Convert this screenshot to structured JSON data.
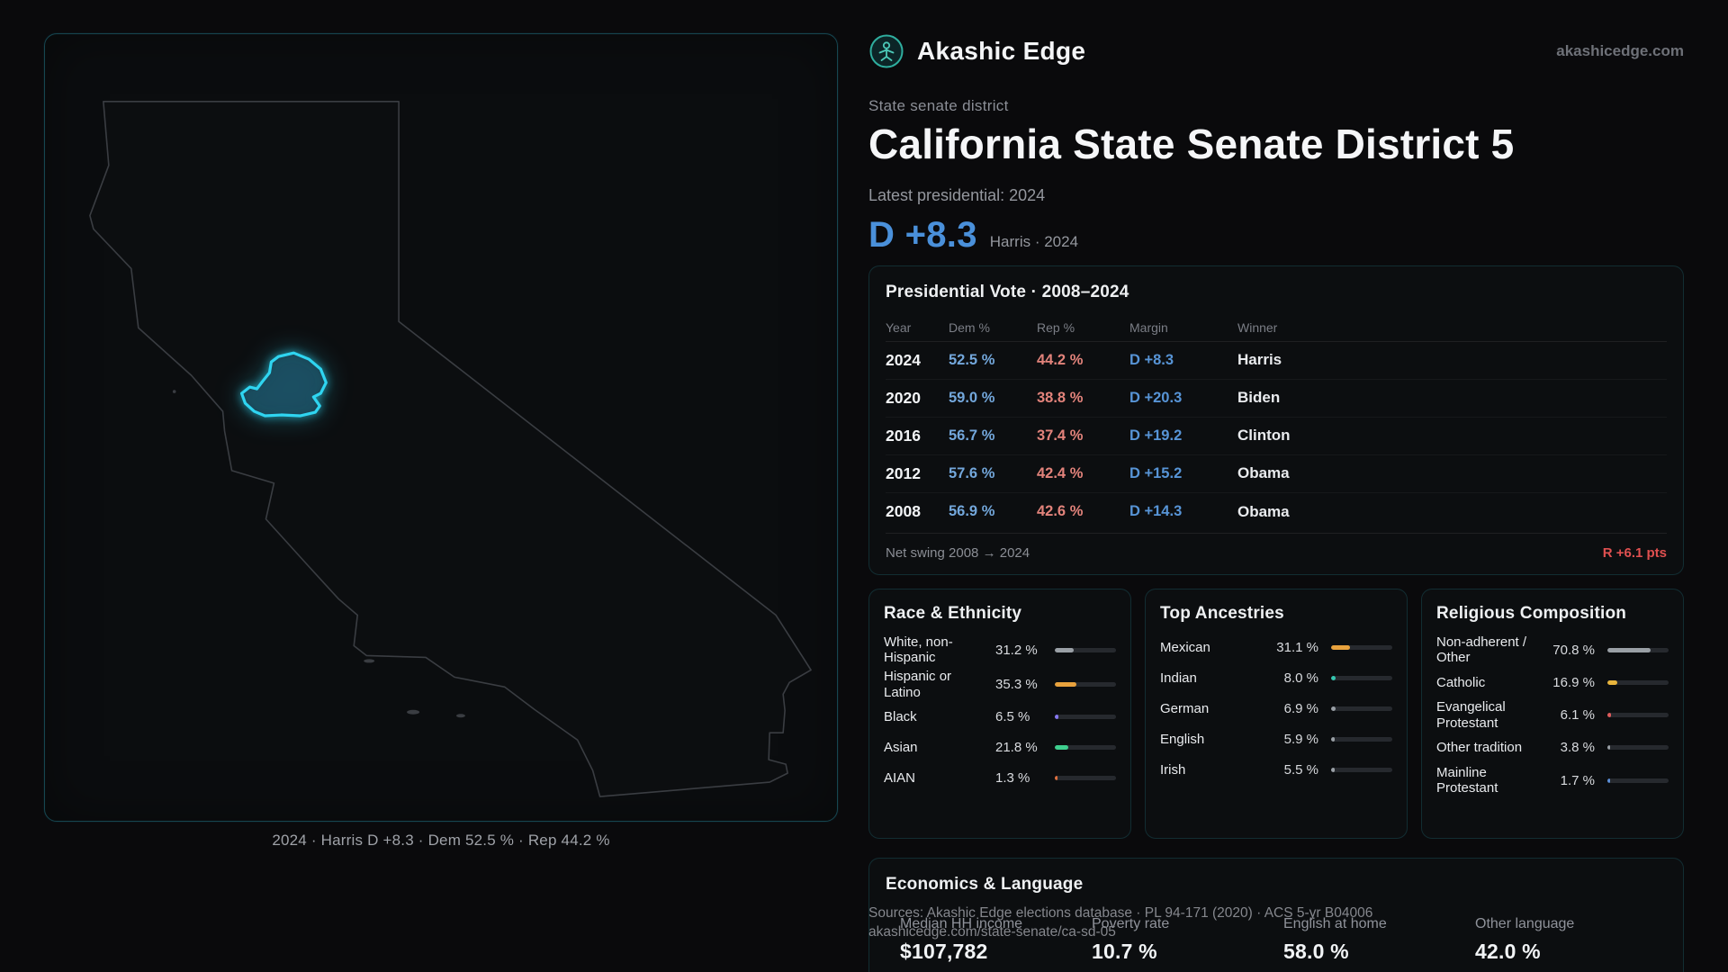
{
  "brand": {
    "name": "Akashic Edge",
    "domain": "akashicedge.com"
  },
  "hero": {
    "eyebrow": "State senate district",
    "title": "California State Senate District 5",
    "latest_label": "Latest presidential: 2024",
    "headline_margin": "D +8.3",
    "headline_note": "Harris · 2024"
  },
  "map": {
    "caption": "2024 · Harris D +8.3 · Dem 52.5 % · Rep 44.2 %",
    "district_color": "#2fd5f1",
    "state_outline_color": "#3a3d42"
  },
  "presidential": {
    "title": "Presidential Vote · 2008–2024",
    "columns": [
      "Year",
      "Dem %",
      "Rep %",
      "Margin",
      "Winner"
    ],
    "rows": [
      {
        "year": "2024",
        "dem": "52.5 %",
        "rep": "44.2 %",
        "margin": "D +8.3",
        "winner": "Harris"
      },
      {
        "year": "2020",
        "dem": "59.0 %",
        "rep": "38.8 %",
        "margin": "D +20.3",
        "winner": "Biden"
      },
      {
        "year": "2016",
        "dem": "56.7 %",
        "rep": "37.4 %",
        "margin": "D +19.2",
        "winner": "Clinton"
      },
      {
        "year": "2012",
        "dem": "57.6 %",
        "rep": "42.4 %",
        "margin": "D +15.2",
        "winner": "Obama"
      },
      {
        "year": "2008",
        "dem": "56.9 %",
        "rep": "42.6 %",
        "margin": "D +14.3",
        "winner": "Obama"
      }
    ],
    "net_swing_label": "Net swing 2008 → 2024",
    "net_swing_value": "R +6.1 pts"
  },
  "race": {
    "title": "Race & Ethnicity",
    "rows": [
      {
        "label": "White, non-Hispanic",
        "value": "31.2 %",
        "pct": 31.2,
        "color": "#9aa0a6"
      },
      {
        "label": "Hispanic or Latino",
        "value": "35.3 %",
        "pct": 35.3,
        "color": "#e8a23d"
      },
      {
        "label": "Black",
        "value": "6.5 %",
        "pct": 6.5,
        "color": "#8678f0"
      },
      {
        "label": "Asian",
        "value": "21.8 %",
        "pct": 21.8,
        "color": "#3ecf8e"
      },
      {
        "label": "AIAN",
        "value": "1.3 %",
        "pct": 1.3,
        "color": "#e0703f"
      }
    ]
  },
  "ancestries": {
    "title": "Top Ancestries",
    "rows": [
      {
        "label": "Mexican",
        "value": "31.1 %",
        "pct": 31.1,
        "color": "#e8a23d"
      },
      {
        "label": "Indian",
        "value": "8.0 %",
        "pct": 8.0,
        "color": "#35c7b0"
      },
      {
        "label": "German",
        "value": "6.9 %",
        "pct": 6.9,
        "color": "#9aa0a6"
      },
      {
        "label": "English",
        "value": "5.9 %",
        "pct": 5.9,
        "color": "#9aa0a6"
      },
      {
        "label": "Irish",
        "value": "5.5 %",
        "pct": 5.5,
        "color": "#9aa0a6"
      }
    ]
  },
  "religion": {
    "title": "Religious Composition",
    "rows": [
      {
        "label": "Non-adherent / Other",
        "value": "70.8 %",
        "pct": 70.8,
        "color": "#9aa0a6"
      },
      {
        "label": "Catholic",
        "value": "16.9 %",
        "pct": 16.9,
        "color": "#e8b53d"
      },
      {
        "label": "Evangelical Protestant",
        "value": "6.1 %",
        "pct": 6.1,
        "color": "#e05b5b"
      },
      {
        "label": "Other tradition",
        "value": "3.8 %",
        "pct": 3.8,
        "color": "#9aa0a6"
      },
      {
        "label": "Mainline Protestant",
        "value": "1.7 %",
        "pct": 1.7,
        "color": "#5b8fd9"
      }
    ]
  },
  "economics": {
    "title": "Economics & Language",
    "stats": [
      {
        "label": "Median HH income",
        "value": "$107,782"
      },
      {
        "label": "Poverty rate",
        "value": "10.7 %"
      },
      {
        "label": "English at home",
        "value": "58.0 %"
      },
      {
        "label": "Other language",
        "value": "42.0 %"
      }
    ]
  },
  "footer": {
    "sources": "Sources: Akashic Edge elections database · PL 94-171 (2020) · ACS 5-yr B04006",
    "permalink": "akashicedge.com/state-senate/ca-sd-05"
  }
}
